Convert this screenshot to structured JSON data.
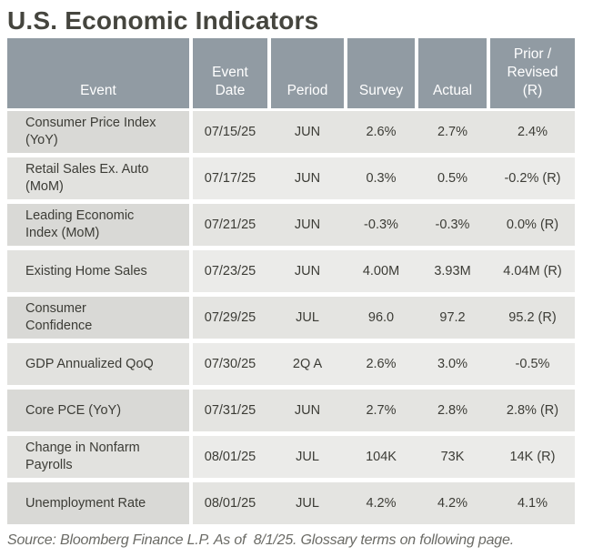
{
  "title": "U.S. Economic Indicators",
  "colors": {
    "header_bg": "#919ba3",
    "header_text": "#ffffff",
    "row_dark_event_bg": "#d9d9d6",
    "row_dark_data_bg": "#e4e4e1",
    "row_light_event_bg": "#e2e2df",
    "row_light_data_bg": "#ebebe9",
    "title_text": "#45453e",
    "body_text": "#3c3c36",
    "footer_text": "#6b6b66"
  },
  "table": {
    "columns": [
      {
        "key": "event",
        "label": "Event"
      },
      {
        "key": "event_date",
        "label": "Event\nDate"
      },
      {
        "key": "period",
        "label": "Period"
      },
      {
        "key": "survey",
        "label": "Survey"
      },
      {
        "key": "actual",
        "label": "Actual"
      },
      {
        "key": "prior_revised",
        "label": "Prior /\nRevised\n(R)"
      }
    ],
    "rows": [
      {
        "event": "Consumer Price Index\n(YoY)",
        "event_date": "07/15/25",
        "period": "JUN",
        "survey": "2.6%",
        "actual": "2.7%",
        "prior_revised": "2.4%"
      },
      {
        "event": "Retail Sales Ex. Auto\n(MoM)",
        "event_date": "07/17/25",
        "period": "JUN",
        "survey": "0.3%",
        "actual": "0.5%",
        "prior_revised": "-0.2% (R)"
      },
      {
        "event": "Leading Economic\nIndex (MoM)",
        "event_date": "07/21/25",
        "period": "JUN",
        "survey": "-0.3%",
        "actual": "-0.3%",
        "prior_revised": "0.0% (R)"
      },
      {
        "event": "Existing Home Sales",
        "event_date": "07/23/25",
        "period": "JUN",
        "survey": "4.00M",
        "actual": "3.93M",
        "prior_revised": "4.04M (R)"
      },
      {
        "event": "Consumer\nConfidence",
        "event_date": "07/29/25",
        "period": "JUL",
        "survey": "96.0",
        "actual": "97.2",
        "prior_revised": "95.2 (R)"
      },
      {
        "event": "GDP Annualized QoQ",
        "event_date": "07/30/25",
        "period": "2Q A",
        "survey": "2.6%",
        "actual": "3.0%",
        "prior_revised": "-0.5%"
      },
      {
        "event": "Core PCE (YoY)",
        "event_date": "07/31/25",
        "period": "JUN",
        "survey": "2.7%",
        "actual": "2.8%",
        "prior_revised": "2.8% (R)"
      },
      {
        "event": "Change in Nonfarm\nPayrolls",
        "event_date": "08/01/25",
        "period": "JUL",
        "survey": "104K",
        "actual": "73K",
        "prior_revised": "14K (R)"
      },
      {
        "event": "Unemployment Rate",
        "event_date": "08/01/25",
        "period": "JUL",
        "survey": "4.2%",
        "actual": "4.2%",
        "prior_revised": "4.1%"
      }
    ]
  },
  "footer": {
    "source_note": "Source: Bloomberg Finance L.P. As of  8/1/25. Glossary terms on following page."
  }
}
